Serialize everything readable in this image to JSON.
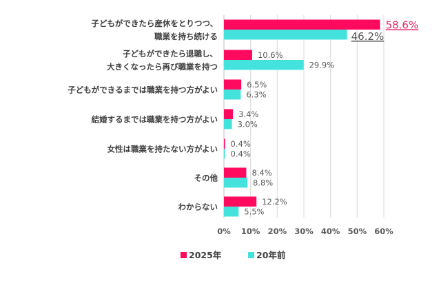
{
  "chart_data": {
    "type": "bar",
    "orientation": "horizontal",
    "categories": [
      [
        "子どもができたら産休をとりつつ、",
        "職業を持ち続ける"
      ],
      [
        "子どもができたら退職し、",
        "大きくなったら再び職業を持つ"
      ],
      [
        "子どもができるまでは職業を持つ方がよい"
      ],
      [
        "結婚するまでは職業を持つ方がよい"
      ],
      [
        "女性は職業を持たない方がよい"
      ],
      [
        "その他"
      ],
      [
        "わからない"
      ]
    ],
    "series": [
      {
        "name": "2025年",
        "color": "#FF0A5F",
        "values": [
          58.6,
          10.6,
          6.5,
          3.4,
          0.4,
          8.4,
          12.2
        ],
        "labels": [
          "58.6%",
          "10.6%",
          "6.5%",
          "3.4%",
          "0.4%",
          "8.4%",
          "12.2%"
        ]
      },
      {
        "name": "20年前",
        "color": "#44E2DD",
        "values": [
          46.2,
          29.9,
          6.3,
          3.0,
          0.4,
          8.8,
          5.5
        ],
        "labels": [
          "46.2%",
          "29.9%",
          "6.3%",
          "3.0%",
          "0.4%",
          "8.8%",
          "5.5%"
        ]
      }
    ],
    "xlim": [
      0,
      60
    ],
    "xticks": [
      "0%",
      "10%",
      "20%",
      "30%",
      "40%",
      "50%",
      "60%"
    ],
    "grid": true,
    "legend": "bottom",
    "highlight": {
      "row": 0,
      "underline": true,
      "series0_label_color": "#E8246A",
      "series1_label_color": "#555555"
    }
  }
}
